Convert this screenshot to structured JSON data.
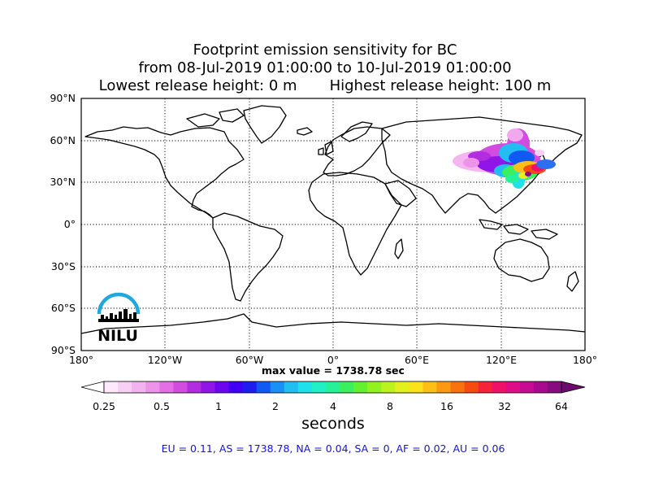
{
  "title": {
    "line1": "Footprint emission sensitivity for BC",
    "line2": "from 08-Jul-2019 01:00:00 to 10-Jul-2019 01:00:00",
    "line3": "Lowest release height: 0 m       Highest release height: 100 m"
  },
  "map": {
    "lat_labels": [
      "90°N",
      "60°N",
      "30°N",
      "0°",
      "30°S",
      "60°S",
      "90°S"
    ],
    "lon_labels": [
      "180°",
      "120°W",
      "60°W",
      "0°",
      "60°E",
      "120°E",
      "180°"
    ],
    "lon_range": [
      -180,
      180
    ],
    "lat_range": [
      -90,
      90
    ],
    "grid": "dotted",
    "logo_text": "NILU",
    "logo_color": "#1fa8e0"
  },
  "max_value": "max value = 1738.78 sec",
  "colorbar": {
    "ticks": [
      "0.25",
      "0.5",
      "1",
      "2",
      "4",
      "8",
      "16",
      "32",
      "64"
    ],
    "unit": "seconds",
    "colors": [
      "#ffffff",
      "#fde9fb",
      "#f9d0f5",
      "#f4b3ef",
      "#ee93ea",
      "#e46fe4",
      "#d24ce0",
      "#b22ce0",
      "#8f16e6",
      "#6b06ef",
      "#4100f5",
      "#1c1ef0",
      "#1059f2",
      "#1890f5",
      "#22bdf2",
      "#20e0ea",
      "#1ff0c6",
      "#25f296",
      "#3af05e",
      "#63f030",
      "#91f21f",
      "#bcf21e",
      "#e2f01e",
      "#fbe21a",
      "#fbbf15",
      "#fb9a12",
      "#f8720f",
      "#f54a10",
      "#f5233a",
      "#ef1068",
      "#df0c87",
      "#c70b92",
      "#a80a8f",
      "#870c80",
      "#6c0b6e"
    ]
  },
  "stats_text": "EU = 0.11,  AS = 1738.78,  NA = 0.04,  SA = 0,  AF = 0.02,  AU = 0.06",
  "stats_color": "#1515d8"
}
